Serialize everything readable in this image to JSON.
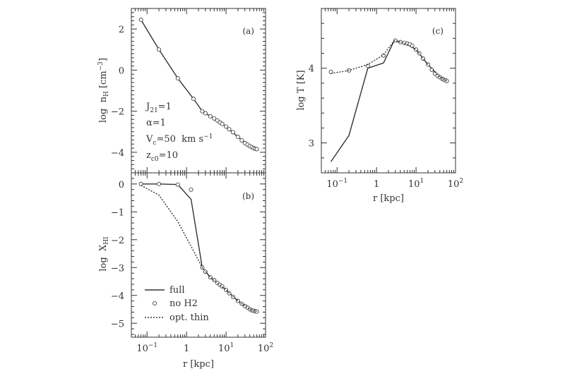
{
  "chart_data": [
    {
      "panel": "a",
      "type": "line",
      "panel_label": "(a)",
      "xlabel": "",
      "ylabel": "log  n_H  [cm^-3]",
      "xscale": "log",
      "xlim": [
        0.04,
        100
      ],
      "ylim": [
        -5,
        3
      ],
      "yticks": [
        "2",
        "0",
        "−2",
        "−4"
      ],
      "annotations": [
        "J21=1",
        "α=1",
        "Vc=50  km s−1",
        "zc0=10"
      ],
      "series": [
        {
          "style": "full",
          "x": [
            0.07,
            0.2,
            0.6,
            1.5,
            2.5,
            4,
            6,
            10,
            20,
            40,
            60
          ],
          "y": [
            2.45,
            1.0,
            -0.4,
            -1.4,
            -2.0,
            -2.25,
            -2.45,
            -2.75,
            -3.25,
            -3.7,
            -3.85
          ]
        },
        {
          "style": "no H2",
          "x": [
            0.07,
            0.2,
            0.6,
            1.5,
            2.5,
            3,
            4,
            5,
            6,
            7,
            8,
            10,
            12,
            15,
            20,
            25,
            30,
            35,
            40,
            45,
            50,
            55,
            60
          ],
          "y": [
            2.45,
            1.0,
            -0.4,
            -1.4,
            -2.0,
            -2.1,
            -2.25,
            -2.35,
            -2.45,
            -2.55,
            -2.62,
            -2.75,
            -2.88,
            -3.02,
            -3.25,
            -3.42,
            -3.55,
            -3.63,
            -3.7,
            -3.75,
            -3.8,
            -3.83,
            -3.85
          ]
        }
      ]
    },
    {
      "panel": "b",
      "type": "line",
      "panel_label": "(b)",
      "xlabel": "r  [kpc]",
      "ylabel": "log  X_HI",
      "xscale": "log",
      "xlim": [
        0.04,
        100
      ],
      "ylim": [
        -5.5,
        0.4
      ],
      "xticks": [
        "10−1",
        "1",
        "101",
        "102"
      ],
      "yticks": [
        "0",
        "−1",
        "−2",
        "−3",
        "−4",
        "−5"
      ],
      "legend": {
        "position": "bottom-left",
        "entries": [
          "full",
          "no H2",
          "opt. thin"
        ]
      },
      "series": [
        {
          "name": "full",
          "x": [
            0.07,
            0.2,
            0.6,
            1.3,
            2.5,
            4,
            6,
            10,
            20,
            40,
            60
          ],
          "y": [
            0.0,
            0.0,
            -0.02,
            -0.55,
            -3.0,
            -3.35,
            -3.55,
            -3.8,
            -4.2,
            -4.5,
            -4.58
          ]
        },
        {
          "name": "no H2",
          "x": [
            0.07,
            0.2,
            0.6,
            1.3,
            2.5,
            3,
            4,
            5,
            6,
            7,
            8,
            10,
            12,
            15,
            20,
            25,
            30,
            35,
            40,
            45,
            50,
            55,
            60
          ],
          "y": [
            0.0,
            0.0,
            -0.02,
            -0.2,
            -3.0,
            -3.15,
            -3.35,
            -3.45,
            -3.55,
            -3.62,
            -3.68,
            -3.8,
            -3.92,
            -4.05,
            -4.2,
            -4.3,
            -4.38,
            -4.44,
            -4.5,
            -4.53,
            -4.55,
            -4.57,
            -4.58
          ]
        },
        {
          "name": "opt. thin",
          "x": [
            0.07,
            0.2,
            0.6,
            1.5,
            2.5,
            4,
            6,
            10,
            20,
            40,
            60
          ],
          "y": [
            -0.05,
            -0.4,
            -1.35,
            -2.4,
            -3.0,
            -3.35,
            -3.55,
            -3.8,
            -4.2,
            -4.5,
            -4.58
          ]
        }
      ]
    },
    {
      "panel": "c",
      "type": "line",
      "panel_label": "(c)",
      "xlabel": "r  [kpc]",
      "ylabel": "log  T  [K]",
      "xscale": "log",
      "xlim": [
        0.04,
        100
      ],
      "ylim": [
        2.6,
        4.8
      ],
      "xticks": [
        "10−1",
        "1",
        "101",
        "102"
      ],
      "yticks": [
        "3",
        "4"
      ],
      "series": [
        {
          "style": "full",
          "x": [
            0.07,
            0.2,
            0.6,
            1.5,
            2.8,
            4,
            6,
            10,
            20,
            40,
            60
          ],
          "y": [
            2.75,
            3.1,
            4.0,
            4.07,
            4.37,
            4.35,
            4.32,
            4.25,
            4.05,
            3.88,
            3.83
          ]
        },
        {
          "style": "no H2",
          "x": [
            0.07,
            0.2,
            0.6,
            1.5,
            3,
            4,
            5,
            6,
            7,
            8,
            10,
            12,
            15,
            20,
            25,
            30,
            35,
            40,
            45,
            50,
            55,
            60
          ],
          "y": [
            3.95,
            3.97,
            4.03,
            4.17,
            4.37,
            4.35,
            4.34,
            4.33,
            4.32,
            4.3,
            4.25,
            4.2,
            4.13,
            4.05,
            3.98,
            3.93,
            3.9,
            3.88,
            3.86,
            3.85,
            3.84,
            3.83
          ]
        },
        {
          "style": "opt. thin",
          "x": [
            0.07,
            0.2,
            0.6,
            1.5,
            2.8,
            4,
            6,
            10,
            20,
            40,
            60
          ],
          "y": [
            3.93,
            3.97,
            4.05,
            4.18,
            4.37,
            4.35,
            4.32,
            4.25,
            4.05,
            3.88,
            3.83
          ]
        }
      ]
    }
  ]
}
